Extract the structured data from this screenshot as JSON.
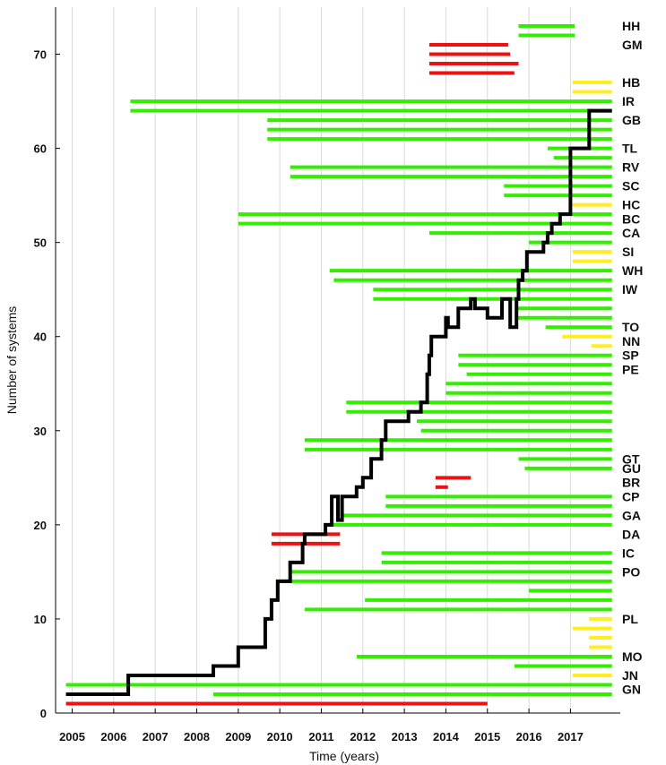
{
  "chart_data": {
    "type": "line",
    "xlabel": "Time (years)",
    "ylabel": "Number of systems",
    "xlim": [
      2004.6,
      2018.2
    ],
    "ylim": [
      0,
      75
    ],
    "grid": "vertical",
    "x_ticks": [
      2005,
      2006,
      2007,
      2008,
      2009,
      2010,
      2011,
      2012,
      2013,
      2014,
      2015,
      2016,
      2017
    ],
    "y_ticks": [
      0,
      10,
      20,
      30,
      40,
      50,
      60,
      70
    ],
    "colors": {
      "active": "#33ee00",
      "planned": "#ffee22",
      "retired": "#ee1111",
      "total": "#000000"
    },
    "system_labels": [
      {
        "label": "HH",
        "y": 73
      },
      {
        "label": "GM",
        "y": 71
      },
      {
        "label": "HB",
        "y": 67
      },
      {
        "label": "IR",
        "y": 65
      },
      {
        "label": "GB",
        "y": 63
      },
      {
        "label": "TL",
        "y": 60
      },
      {
        "label": "RV",
        "y": 58
      },
      {
        "label": "SC",
        "y": 56
      },
      {
        "label": "HC",
        "y": 54
      },
      {
        "label": "BC",
        "y": 52.5
      },
      {
        "label": "CA",
        "y": 51
      },
      {
        "label": "SI",
        "y": 49
      },
      {
        "label": "WH",
        "y": 47
      },
      {
        "label": "IW",
        "y": 45
      },
      {
        "label": "TO",
        "y": 41
      },
      {
        "label": "NN",
        "y": 39.5
      },
      {
        "label": "SP",
        "y": 38
      },
      {
        "label": "PE",
        "y": 36.5
      },
      {
        "label": "GT",
        "y": 27
      },
      {
        "label": "GU",
        "y": 26
      },
      {
        "label": "BR",
        "y": 24.5
      },
      {
        "label": "CP",
        "y": 23
      },
      {
        "label": "GA",
        "y": 21
      },
      {
        "label": "DA",
        "y": 19
      },
      {
        "label": "IC",
        "y": 17
      },
      {
        "label": "PO",
        "y": 15
      },
      {
        "label": "PL",
        "y": 10
      },
      {
        "label": "MO",
        "y": 6
      },
      {
        "label": "JN",
        "y": 4
      },
      {
        "label": "GN",
        "y": 2.5
      }
    ],
    "intervals": [
      {
        "y": 73,
        "start": 2015.75,
        "end": 2017.1,
        "status": "active"
      },
      {
        "y": 72,
        "start": 2015.75,
        "end": 2017.1,
        "status": "active"
      },
      {
        "y": 71,
        "start": 2013.6,
        "end": 2015.5,
        "status": "retired"
      },
      {
        "y": 70,
        "start": 2013.6,
        "end": 2015.55,
        "status": "retired"
      },
      {
        "y": 69,
        "start": 2013.6,
        "end": 2015.75,
        "status": "retired"
      },
      {
        "y": 68,
        "start": 2013.6,
        "end": 2015.65,
        "status": "retired"
      },
      {
        "y": 67,
        "start": 2017.05,
        "end": 2018.0,
        "status": "planned"
      },
      {
        "y": 66,
        "start": 2017.05,
        "end": 2018.0,
        "status": "planned"
      },
      {
        "y": 65,
        "start": 2006.4,
        "end": 2018.0,
        "status": "active"
      },
      {
        "y": 64,
        "start": 2006.4,
        "end": 2018.0,
        "status": "active"
      },
      {
        "y": 63,
        "start": 2009.7,
        "end": 2018.0,
        "status": "active"
      },
      {
        "y": 62,
        "start": 2009.7,
        "end": 2018.0,
        "status": "active"
      },
      {
        "y": 61,
        "start": 2009.7,
        "end": 2018.0,
        "status": "active"
      },
      {
        "y": 60,
        "start": 2016.45,
        "end": 2018.0,
        "status": "active"
      },
      {
        "y": 59,
        "start": 2016.6,
        "end": 2018.0,
        "status": "active"
      },
      {
        "y": 58,
        "start": 2010.25,
        "end": 2018.0,
        "status": "active"
      },
      {
        "y": 57,
        "start": 2010.25,
        "end": 2018.0,
        "status": "active"
      },
      {
        "y": 56,
        "start": 2015.4,
        "end": 2018.0,
        "status": "active"
      },
      {
        "y": 55,
        "start": 2015.4,
        "end": 2018.0,
        "status": "active"
      },
      {
        "y": 54,
        "start": 2017.05,
        "end": 2018.0,
        "status": "planned"
      },
      {
        "y": 53,
        "start": 2009.0,
        "end": 2018.0,
        "status": "active"
      },
      {
        "y": 52,
        "start": 2009.0,
        "end": 2018.0,
        "status": "active"
      },
      {
        "y": 51,
        "start": 2013.6,
        "end": 2018.0,
        "status": "active"
      },
      {
        "y": 50,
        "start": 2016.0,
        "end": 2018.0,
        "status": "active"
      },
      {
        "y": 49,
        "start": 2017.05,
        "end": 2018.0,
        "status": "planned"
      },
      {
        "y": 48,
        "start": 2017.05,
        "end": 2018.0,
        "status": "planned"
      },
      {
        "y": 47,
        "start": 2011.2,
        "end": 2018.0,
        "status": "active"
      },
      {
        "y": 46,
        "start": 2011.3,
        "end": 2018.0,
        "status": "active"
      },
      {
        "y": 45,
        "start": 2012.25,
        "end": 2018.0,
        "status": "active"
      },
      {
        "y": 44,
        "start": 2012.25,
        "end": 2018.0,
        "status": "active"
      },
      {
        "y": 43,
        "start": 2015.7,
        "end": 2018.0,
        "status": "active"
      },
      {
        "y": 42,
        "start": 2015.7,
        "end": 2018.0,
        "status": "active"
      },
      {
        "y": 41,
        "start": 2016.4,
        "end": 2018.0,
        "status": "active"
      },
      {
        "y": 40,
        "start": 2016.8,
        "end": 2018.0,
        "status": "planned"
      },
      {
        "y": 39,
        "start": 2017.5,
        "end": 2018.0,
        "status": "planned"
      },
      {
        "y": 38,
        "start": 2014.3,
        "end": 2018.0,
        "status": "active"
      },
      {
        "y": 37,
        "start": 2014.3,
        "end": 2018.0,
        "status": "active"
      },
      {
        "y": 36,
        "start": 2014.5,
        "end": 2018.0,
        "status": "active"
      },
      {
        "y": 35,
        "start": 2014.0,
        "end": 2018.0,
        "status": "active"
      },
      {
        "y": 34,
        "start": 2014.0,
        "end": 2018.0,
        "status": "active"
      },
      {
        "y": 33,
        "start": 2011.6,
        "end": 2018.0,
        "status": "active"
      },
      {
        "y": 32,
        "start": 2011.6,
        "end": 2018.0,
        "status": "active"
      },
      {
        "y": 31,
        "start": 2013.3,
        "end": 2018.0,
        "status": "active"
      },
      {
        "y": 30,
        "start": 2013.4,
        "end": 2018.0,
        "status": "active"
      },
      {
        "y": 29,
        "start": 2010.6,
        "end": 2018.0,
        "status": "active"
      },
      {
        "y": 28,
        "start": 2010.6,
        "end": 2018.0,
        "status": "active"
      },
      {
        "y": 27,
        "start": 2015.75,
        "end": 2018.0,
        "status": "active"
      },
      {
        "y": 26,
        "start": 2015.9,
        "end": 2018.0,
        "status": "active"
      },
      {
        "y": 25,
        "start": 2013.75,
        "end": 2014.6,
        "status": "retired"
      },
      {
        "y": 24,
        "start": 2013.75,
        "end": 2014.05,
        "status": "retired"
      },
      {
        "y": 23,
        "start": 2012.55,
        "end": 2018.0,
        "status": "active"
      },
      {
        "y": 22,
        "start": 2012.55,
        "end": 2018.0,
        "status": "active"
      },
      {
        "y": 21,
        "start": 2011.5,
        "end": 2018.0,
        "status": "active"
      },
      {
        "y": 20,
        "start": 2011.1,
        "end": 2018.0,
        "status": "active"
      },
      {
        "y": 19,
        "start": 2009.8,
        "end": 2011.45,
        "status": "retired"
      },
      {
        "y": 18,
        "start": 2009.8,
        "end": 2011.45,
        "status": "retired"
      },
      {
        "y": 17,
        "start": 2012.45,
        "end": 2018.0,
        "status": "active"
      },
      {
        "y": 16,
        "start": 2012.45,
        "end": 2018.0,
        "status": "active"
      },
      {
        "y": 15,
        "start": 2010.25,
        "end": 2018.0,
        "status": "active"
      },
      {
        "y": 14,
        "start": 2010.0,
        "end": 2018.0,
        "status": "active"
      },
      {
        "y": 13,
        "start": 2016.0,
        "end": 2018.0,
        "status": "active"
      },
      {
        "y": 12,
        "start": 2012.05,
        "end": 2018.0,
        "status": "active"
      },
      {
        "y": 11,
        "start": 2010.6,
        "end": 2018.0,
        "status": "active"
      },
      {
        "y": 10,
        "start": 2017.45,
        "end": 2018.0,
        "status": "planned"
      },
      {
        "y": 9,
        "start": 2017.05,
        "end": 2018.0,
        "status": "planned"
      },
      {
        "y": 8,
        "start": 2017.45,
        "end": 2018.0,
        "status": "planned"
      },
      {
        "y": 7,
        "start": 2017.45,
        "end": 2018.0,
        "status": "planned"
      },
      {
        "y": 6,
        "start": 2011.85,
        "end": 2018.0,
        "status": "active"
      },
      {
        "y": 5,
        "start": 2015.65,
        "end": 2018.0,
        "status": "active"
      },
      {
        "y": 4,
        "start": 2017.05,
        "end": 2018.0,
        "status": "planned"
      },
      {
        "y": 3,
        "start": 2004.85,
        "end": 2018.0,
        "status": "active"
      },
      {
        "y": 2,
        "start": 2008.4,
        "end": 2018.0,
        "status": "active"
      },
      {
        "y": 1,
        "start": 2004.85,
        "end": 2015.0,
        "status": "retired"
      }
    ],
    "total_series": {
      "name": "",
      "points": [
        [
          2004.85,
          2
        ],
        [
          2006.35,
          2
        ],
        [
          2006.35,
          4
        ],
        [
          2008.4,
          4
        ],
        [
          2008.4,
          5
        ],
        [
          2009.0,
          5
        ],
        [
          2009.0,
          7
        ],
        [
          2009.65,
          7
        ],
        [
          2009.65,
          10
        ],
        [
          2009.8,
          10
        ],
        [
          2009.8,
          12
        ],
        [
          2009.95,
          12
        ],
        [
          2009.95,
          14
        ],
        [
          2010.25,
          14
        ],
        [
          2010.25,
          16
        ],
        [
          2010.55,
          16
        ],
        [
          2010.55,
          18
        ],
        [
          2010.6,
          18
        ],
        [
          2010.6,
          19
        ],
        [
          2011.1,
          19
        ],
        [
          2011.1,
          20
        ],
        [
          2011.25,
          20
        ],
        [
          2011.25,
          23
        ],
        [
          2011.4,
          23
        ],
        [
          2011.4,
          20.5
        ],
        [
          2011.5,
          20.5
        ],
        [
          2011.5,
          23
        ],
        [
          2011.85,
          23
        ],
        [
          2011.85,
          24
        ],
        [
          2012.0,
          24
        ],
        [
          2012.0,
          25
        ],
        [
          2012.2,
          25
        ],
        [
          2012.2,
          27
        ],
        [
          2012.45,
          27
        ],
        [
          2012.45,
          29
        ],
        [
          2012.55,
          29
        ],
        [
          2012.55,
          31
        ],
        [
          2013.1,
          31
        ],
        [
          2013.1,
          32
        ],
        [
          2013.4,
          32
        ],
        [
          2013.4,
          33
        ],
        [
          2013.55,
          33
        ],
        [
          2013.55,
          36
        ],
        [
          2013.6,
          36
        ],
        [
          2013.6,
          38
        ],
        [
          2013.65,
          38
        ],
        [
          2013.65,
          40
        ],
        [
          2014.0,
          40
        ],
        [
          2014.0,
          42
        ],
        [
          2014.05,
          42
        ],
        [
          2014.05,
          41
        ],
        [
          2014.3,
          41
        ],
        [
          2014.3,
          43
        ],
        [
          2014.6,
          43
        ],
        [
          2014.6,
          44
        ],
        [
          2014.7,
          44
        ],
        [
          2014.7,
          43
        ],
        [
          2015.0,
          43
        ],
        [
          2015.0,
          42
        ],
        [
          2015.35,
          42
        ],
        [
          2015.35,
          44
        ],
        [
          2015.55,
          44
        ],
        [
          2015.55,
          41
        ],
        [
          2015.7,
          41
        ],
        [
          2015.7,
          44
        ],
        [
          2015.75,
          44
        ],
        [
          2015.75,
          46
        ],
        [
          2015.85,
          46
        ],
        [
          2015.85,
          47
        ],
        [
          2015.95,
          47
        ],
        [
          2015.95,
          49
        ],
        [
          2016.35,
          49
        ],
        [
          2016.35,
          50
        ],
        [
          2016.45,
          50
        ],
        [
          2016.45,
          51
        ],
        [
          2016.55,
          51
        ],
        [
          2016.55,
          52
        ],
        [
          2016.75,
          52
        ],
        [
          2016.75,
          53
        ],
        [
          2017.0,
          53
        ],
        [
          2017.0,
          60
        ],
        [
          2017.45,
          60
        ],
        [
          2017.45,
          64
        ],
        [
          2018.0,
          64
        ]
      ]
    }
  }
}
